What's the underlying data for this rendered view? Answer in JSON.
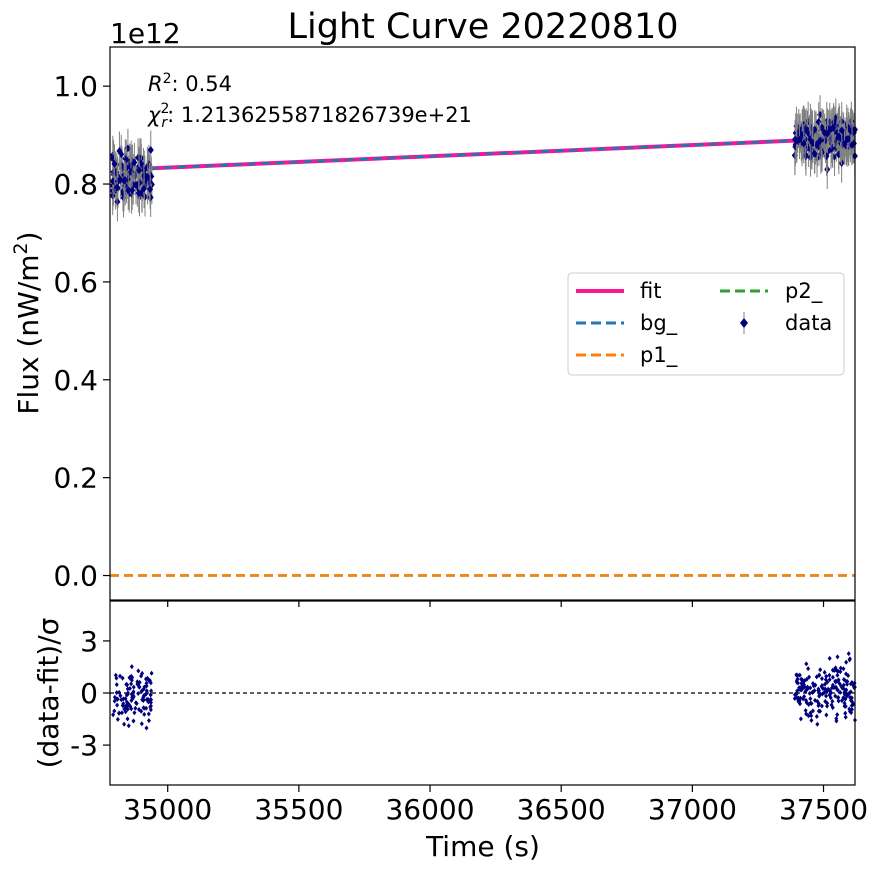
{
  "chart_data": [
    {
      "type": "scatter",
      "title": "Light Curve 20220810",
      "ylabel": "Flux (nW/m²)",
      "ylabel_main": "Flux (nW/m",
      "ylabel_sup": "2",
      "ylabel_close": ")",
      "offset_text": "1e12",
      "y_scale_factor": 1000000000000.0,
      "xlim": [
        34780,
        37620
      ],
      "ylim": [
        -0.05,
        1.08
      ],
      "yticks": [
        0.0,
        0.2,
        0.4,
        0.6,
        0.8,
        1.0
      ],
      "ytick_labels": [
        "0.0",
        "0.2",
        "0.4",
        "0.6",
        "0.8",
        "1.0"
      ],
      "annotations": {
        "r2_label": "R",
        "r2_sup": "2",
        "r2_value": ": 0.54",
        "chi_label": "χ",
        "chi_sub": "r",
        "chi_sup": "2",
        "chi_value": ": 1.2136255871826739e+21"
      },
      "legend": {
        "placement": "center-right",
        "entries": [
          {
            "label": "fit",
            "color": "#ff1493",
            "style": "solid"
          },
          {
            "label": "bg_",
            "color": "#1f77b4",
            "style": "dashed"
          },
          {
            "label": "p1_",
            "color": "#ff7f0e",
            "style": "dashed"
          },
          {
            "label": "p2_",
            "color": "#2ca02c",
            "style": "dashed"
          },
          {
            "label": "data",
            "color": "#00007f",
            "style": "errorbar-marker"
          }
        ]
      },
      "series": [
        {
          "name": "fit",
          "x": [
            34930,
            37620
          ],
          "y": [
            0.832,
            0.894
          ],
          "color": "#ff1493"
        },
        {
          "name": "bg_",
          "x": [
            34930,
            37620
          ],
          "y": [
            0.832,
            0.894
          ],
          "color": "#1f77b4"
        },
        {
          "name": "p1_",
          "x": [
            34780,
            37620
          ],
          "y": [
            0.0,
            0.0
          ],
          "color": "#ff7f0e"
        },
        {
          "name": "p2_",
          "x": [
            34780,
            37620
          ],
          "y": [
            0.0,
            0.0
          ],
          "color": "#2ca02c"
        }
      ],
      "data_clusters": [
        {
          "x_range": [
            34790,
            34940
          ],
          "y_center": 0.815,
          "y_spread": 0.035,
          "y_err": 0.04,
          "n": 120
        },
        {
          "x_range": [
            37390,
            37620
          ],
          "y_center": 0.895,
          "y_spread": 0.03,
          "y_err": 0.04,
          "n": 200
        }
      ],
      "data_color": "#00007f"
    },
    {
      "type": "scatter",
      "xlabel": "Time (s)",
      "ylabel": "(data-fit)/σ",
      "xlim": [
        34780,
        37620
      ],
      "ylim": [
        -5.3,
        5.3
      ],
      "xticks": [
        35000,
        35500,
        36000,
        36500,
        37000,
        37500
      ],
      "xtick_labels": [
        "35000",
        "35500",
        "36000",
        "36500",
        "37000",
        "37500"
      ],
      "yticks": [
        -3,
        0,
        3
      ],
      "ytick_labels": [
        "-3",
        "0",
        "3"
      ],
      "zero_line": {
        "y": 0,
        "color": "#000000",
        "style": "dashed"
      },
      "residual_clusters": [
        {
          "x_range": [
            34790,
            34940
          ],
          "y_center": -0.3,
          "y_spread": 1.1,
          "n": 120
        },
        {
          "x_range": [
            37390,
            37620
          ],
          "y_center": 0.2,
          "y_spread": 1.1,
          "n": 200
        }
      ],
      "data_color": "#00007f"
    }
  ]
}
